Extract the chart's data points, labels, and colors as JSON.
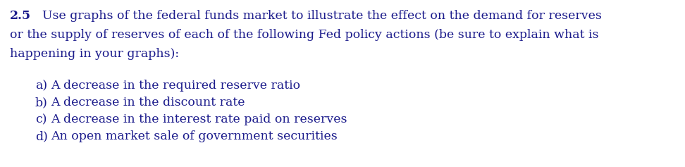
{
  "background_color": "#ffffff",
  "text_color": "#1c1c8c",
  "question_number": "2.5",
  "paragraph_line1": "Use graphs of the federal funds market to illustrate the effect on the demand for reserves",
  "paragraph_line2": "or the supply of reserves of each of the following Fed policy actions (be sure to explain what is",
  "paragraph_line3": "happening in your graphs):",
  "items": [
    [
      "a)",
      "A decrease in the required reserve ratio"
    ],
    [
      "b)",
      "A decrease in the discount rate"
    ],
    [
      "c)",
      "A decrease in the interest rate paid on reserves"
    ],
    [
      "d)",
      "An open market sale of government securities"
    ]
  ],
  "font_size": 12.5,
  "fig_width": 9.72,
  "fig_height": 2.37,
  "dpi": 100
}
